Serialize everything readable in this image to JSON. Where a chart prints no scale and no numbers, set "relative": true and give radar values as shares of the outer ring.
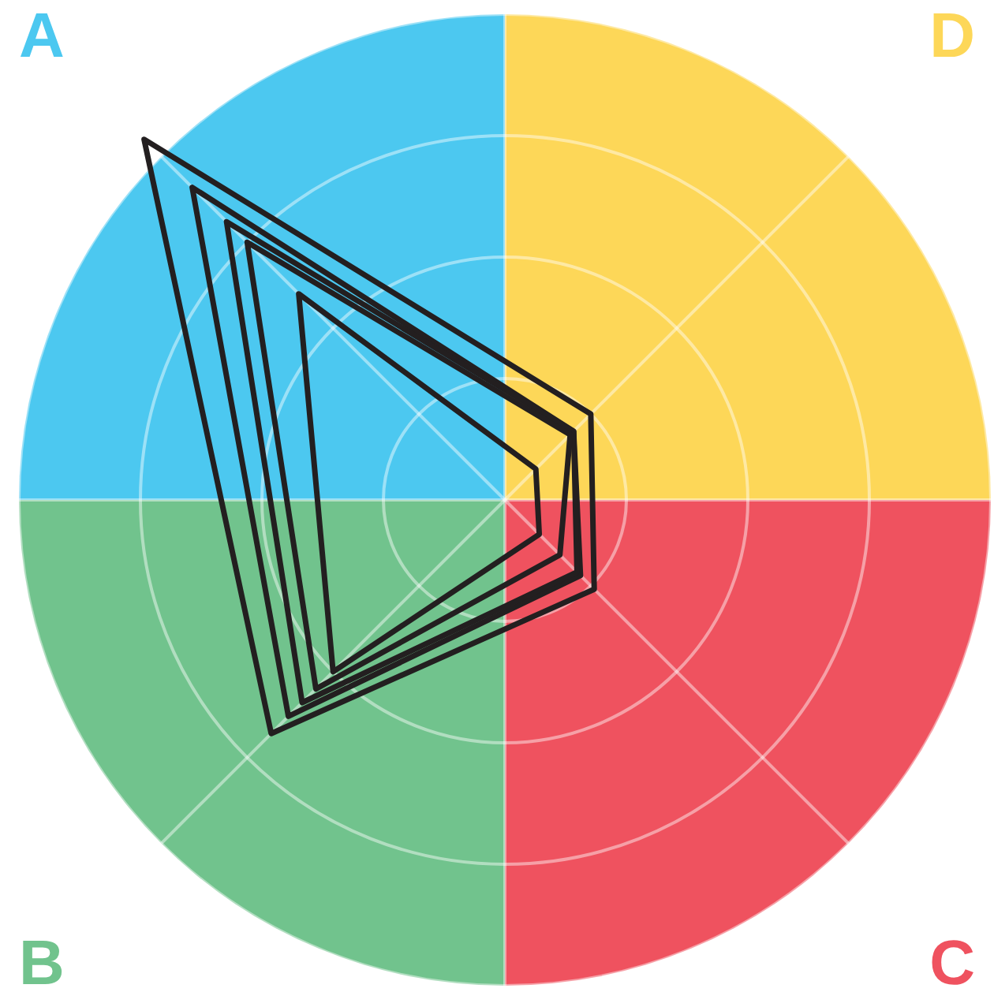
{
  "chart_data": {
    "type": "radar",
    "relative": true,
    "categories": [
      "A",
      "D",
      "C",
      "B"
    ],
    "colors": [
      "#4cc8f0",
      "#fdd758",
      "#ef525f",
      "#71c38d"
    ],
    "grid": true,
    "legend": false,
    "marker": "none",
    "line_style": "solid",
    "series": [
      {
        "color": "#231f20",
        "values": [
          1.05,
          0.25,
          0.26,
          0.68
        ]
      },
      {
        "color": "#231f20",
        "values": [
          0.91,
          0.2,
          0.22,
          0.63
        ]
      },
      {
        "color": "#231f20",
        "values": [
          0.81,
          0.2,
          0.21,
          0.59
        ]
      },
      {
        "color": "#231f20",
        "values": [
          0.75,
          0.19,
          0.16,
          0.55
        ]
      },
      {
        "color": "#231f20",
        "values": [
          0.6,
          0.09,
          0.1,
          0.5
        ]
      }
    ]
  }
}
